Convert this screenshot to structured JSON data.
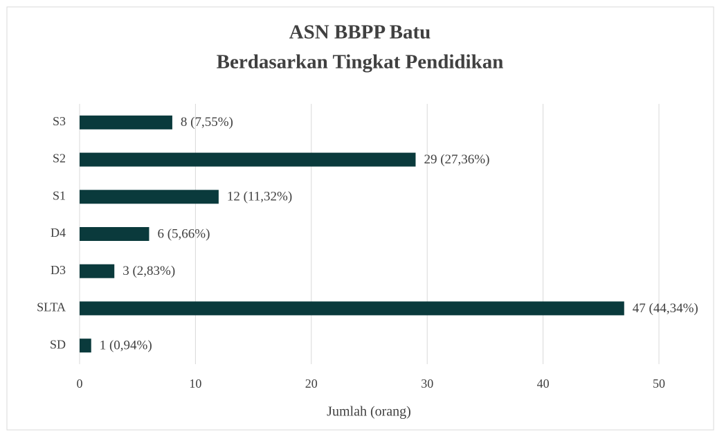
{
  "chart_data": {
    "type": "barh",
    "title": [
      "ASN BBPP Batu",
      "Berdasarkan Tingkat Pendidikan"
    ],
    "categories": [
      "S3",
      "S2",
      "S1",
      "D4",
      "D3",
      "SLTA",
      "SD"
    ],
    "values": [
      8,
      29,
      12,
      6,
      3,
      47,
      1
    ],
    "value_labels": [
      "8 (7,55%)",
      "29 (27,36%)",
      "12 (11,32%)",
      "6 (5,66%)",
      "3 (2,83%)",
      "47 (44,34%)",
      "1 (0,94%)"
    ],
    "color": "#0a3a3c",
    "xlabel": "Jumlah (orang)",
    "xlim": [
      0,
      50
    ],
    "xticks": [
      0,
      10,
      20,
      30,
      40,
      50
    ],
    "grid": true
  }
}
